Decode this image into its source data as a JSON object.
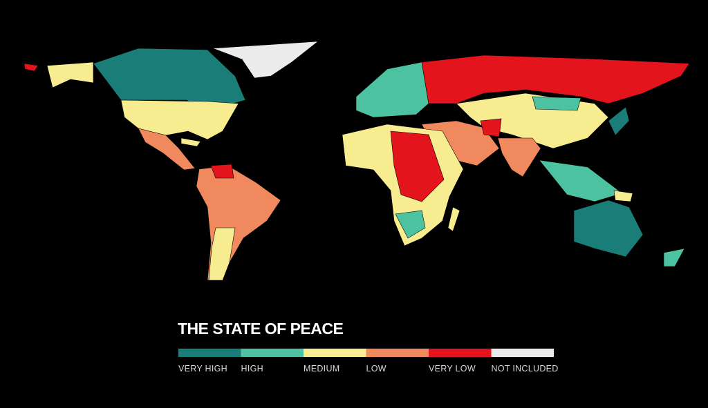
{
  "title": "THE STATE OF PEACE",
  "legend": [
    {
      "label": "VERY HIGH",
      "color": "#1b7d78"
    },
    {
      "label": "HIGH",
      "color": "#4cc2a0"
    },
    {
      "label": "MEDIUM",
      "color": "#f8ec90"
    },
    {
      "label": "LOW",
      "color": "#f08a5e"
    },
    {
      "label": "VERY LOW",
      "color": "#e3141c"
    },
    {
      "label": "NOT INCLUDED",
      "color": "#ececec"
    }
  ]
}
